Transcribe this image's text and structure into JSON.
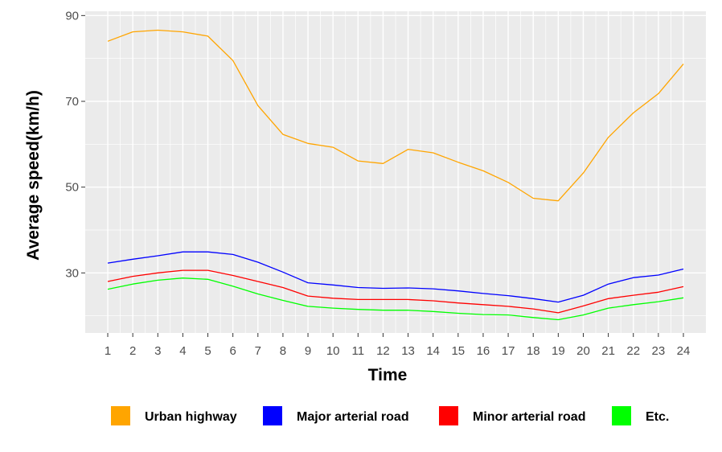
{
  "chart_data": {
    "type": "line",
    "xlabel": "Time",
    "ylabel": "Average speed(km/h)",
    "x": [
      1,
      2,
      3,
      4,
      5,
      6,
      7,
      8,
      9,
      10,
      11,
      12,
      13,
      14,
      15,
      16,
      17,
      18,
      19,
      20,
      21,
      22,
      23,
      24
    ],
    "xlim": [
      0.1,
      24.9
    ],
    "ylim": [
      16,
      91
    ],
    "yticks": [
      30,
      50,
      70,
      90
    ],
    "grid": true,
    "legend_position": "bottom",
    "series": [
      {
        "name": "Urban highway",
        "color": "#FFA500",
        "values": [
          84.0,
          86.2,
          86.6,
          86.2,
          85.2,
          79.5,
          69.0,
          62.3,
          60.2,
          59.3,
          56.1,
          55.5,
          58.8,
          58.0,
          55.8,
          53.8,
          51.1,
          47.4,
          46.8,
          53.3,
          61.6,
          67.3,
          71.8,
          78.7
        ]
      },
      {
        "name": "Major arterial road",
        "color": "#0000FF",
        "values": [
          32.3,
          33.2,
          34.0,
          34.9,
          34.9,
          34.3,
          32.5,
          30.2,
          27.7,
          27.2,
          26.6,
          26.4,
          26.5,
          26.3,
          25.8,
          25.2,
          24.7,
          24.0,
          23.2,
          24.8,
          27.4,
          28.9,
          29.5,
          30.9
        ]
      },
      {
        "name": "Minor arterial road",
        "color": "#FF0000",
        "values": [
          28.0,
          29.2,
          30.0,
          30.6,
          30.6,
          29.4,
          28.0,
          26.6,
          24.6,
          24.1,
          23.8,
          23.8,
          23.8,
          23.5,
          23.0,
          22.6,
          22.2,
          21.6,
          20.7,
          22.3,
          24.0,
          24.8,
          25.5,
          26.8
        ]
      },
      {
        "name": "Etc.",
        "color": "#00FF00",
        "values": [
          26.2,
          27.4,
          28.3,
          28.8,
          28.5,
          26.9,
          25.1,
          23.6,
          22.2,
          21.8,
          21.5,
          21.3,
          21.3,
          21.0,
          20.6,
          20.3,
          20.2,
          19.6,
          19.1,
          20.2,
          21.8,
          22.6,
          23.3,
          24.2
        ]
      }
    ]
  }
}
